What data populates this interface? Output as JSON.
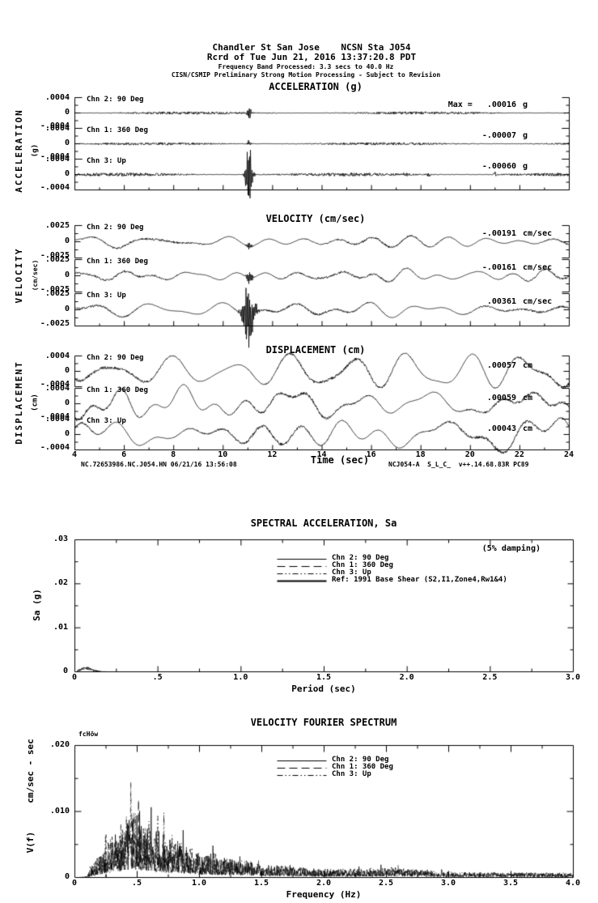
{
  "header": {
    "line1": "Chandler St San Jose    NCSN Sta J054",
    "line2": "Rcrd of Tue Jun 21, 2016 13:37:20.8 PDT",
    "line3": "Frequency Band Processed: 3.3 secs to 40.0 Hz",
    "line4": "CISN/CSMIP Preliminary Strong Motion Processing - Subject to Revision"
  },
  "panels": {
    "acceleration": {
      "title": "ACCELERATION (g)",
      "side_label": "ACCELERATION",
      "side_unit": "(g)",
      "yticks": [
        ".0004",
        "0",
        "-.0004"
      ],
      "channels": [
        {
          "label": "Chn 2: 90 Deg",
          "max_label": "Max =   .00016",
          "unit": "g"
        },
        {
          "label": "Chn 1: 360 Deg",
          "max_label": "-.00007",
          "unit": "g"
        },
        {
          "label": "Chn 3: Up",
          "max_label": "-.00060",
          "unit": "g"
        }
      ]
    },
    "velocity": {
      "title": "VELOCITY (cm/sec)",
      "side_label": "VELOCITY",
      "side_unit": "(cm/sec)",
      "yticks": [
        ".0025",
        "0",
        "-.0025"
      ],
      "channels": [
        {
          "label": "Chn 2: 90 Deg",
          "max_label": "-.00191",
          "unit": "cm/sec"
        },
        {
          "label": "Chn 1: 360 Deg",
          "max_label": "-.00161",
          "unit": "cm/sec"
        },
        {
          "label": "Chn 3: Up",
          "max_label": ".00361",
          "unit": "cm/sec"
        }
      ]
    },
    "displacement": {
      "title": "DISPLACEMENT (cm)",
      "side_label": "DISPLACEMENT",
      "side_unit": "(cm)",
      "yticks": [
        ".0004",
        "0",
        "-.0004"
      ],
      "channels": [
        {
          "label": "Chn 2: 90 Deg",
          "max_label": ".00057",
          "unit": "cm"
        },
        {
          "label": "Chn 1: 360 Deg",
          "max_label": ".00059",
          "unit": "cm"
        },
        {
          "label": "Chn 3: Up",
          "max_label": ".00043",
          "unit": "cm"
        }
      ],
      "xticks": [
        "4",
        "6",
        "8",
        "10",
        "12",
        "14",
        "16",
        "18",
        "20",
        "22",
        "24"
      ],
      "xlabel": "Time (sec)",
      "footer_left": "NC.72653986.NC.J054.HN 06/21/16 13:56:08",
      "footer_right": "NCJ054-A  S_L_C_  v++.14.68.83R PC89"
    }
  },
  "sa": {
    "title": "SPECTRAL ACCELERATION, Sa",
    "damping_note": "(5% damping)",
    "ylabel": "Sa (g)",
    "xlabel": "Period (sec)",
    "yticks": [
      ".03",
      ".02",
      ".01",
      "0"
    ],
    "xticks": [
      "0",
      ".5",
      "1.0",
      "1.5",
      "2.0",
      "2.5",
      "3.0"
    ],
    "legend": [
      {
        "label": "Chn 2: 90 Deg",
        "style": "solid"
      },
      {
        "label": "Chn 1: 360 Deg",
        "style": "long-dash"
      },
      {
        "label": "Chn 3: Up",
        "style": "dash-dot-dot"
      },
      {
        "label": "Ref: 1991 Base Shear (S2,I1,Zone4,Rw1&4)",
        "style": "solid-thick"
      }
    ]
  },
  "fourier": {
    "title": "VELOCITY FOURIER SPECTRUM",
    "fc_label": "fcHöw",
    "ylabel_unit": "cm/sec - sec",
    "ylabel_name": "V(f)",
    "xlabel": "Frequency (Hz)",
    "yticks": [
      ".020",
      ".010",
      "0"
    ],
    "xticks": [
      "0",
      ".5",
      "1.0",
      "1.5",
      "2.0",
      "2.5",
      "3.0",
      "3.5",
      "4.0"
    ],
    "legend": [
      {
        "label": "Chn 2: 90 Deg",
        "style": "solid"
      },
      {
        "label": "Chn 1: 360 Deg",
        "style": "long-dash"
      },
      {
        "label": "Chn 3: Up",
        "style": "dash-dot-dot"
      }
    ]
  },
  "chart_data": [
    {
      "id": "acceleration_time_series",
      "type": "line",
      "title": "ACCELERATION (g)",
      "xlabel": "Time (sec)",
      "xlim": [
        4,
        24
      ],
      "ylim": [
        -0.0004,
        0.0004
      ],
      "units": "g",
      "event_time_sec": 11.05,
      "series": [
        {
          "name": "Chn 2: 90 Deg",
          "peak_value": 0.00016,
          "noise_amp": 2e-05,
          "spike": {
            "t": 11.05,
            "amp": 0.00016,
            "width_sec": 0.08
          }
        },
        {
          "name": "Chn 1: 360 Deg",
          "peak_value": -7e-05,
          "noise_amp": 2e-05,
          "spike": {
            "t": 11.05,
            "amp": 8e-05,
            "width_sec": 0.07
          }
        },
        {
          "name": "Chn 3: Up",
          "peak_value": -0.0006,
          "noise_amp": 2.5e-05,
          "spike": {
            "t": 11.05,
            "amp": 0.0006,
            "width_sec": 0.14
          },
          "minor_bursts": [
            6.3,
            17.4,
            18.3,
            21.0
          ]
        }
      ]
    },
    {
      "id": "velocity_time_series",
      "type": "line",
      "title": "VELOCITY (cm/sec)",
      "xlabel": "Time (sec)",
      "xlim": [
        4,
        24
      ],
      "ylim": [
        -0.0025,
        0.0025
      ],
      "units": "cm/sec",
      "wander_amp": 0.0007,
      "wander_period_range_sec": [
        0.6,
        3.5
      ],
      "series": [
        {
          "name": "Chn 2: 90 Deg",
          "peak_value": -0.00191,
          "spike": {
            "t": 11.05,
            "amp": 0.0006,
            "width_sec": 0.1
          }
        },
        {
          "name": "Chn 1: 360 Deg",
          "peak_value": -0.00161,
          "spike": {
            "t": 11.05,
            "amp": 0.001,
            "width_sec": 0.12
          }
        },
        {
          "name": "Chn 3: Up",
          "peak_value": 0.00361,
          "spike": {
            "t": 11.05,
            "amp": 0.0035,
            "width_sec": 0.25
          }
        }
      ]
    },
    {
      "id": "displacement_time_series",
      "type": "line",
      "title": "DISPLACEMENT (cm)",
      "xlabel": "Time (sec)",
      "xlim": [
        4,
        24
      ],
      "ylim": [
        -0.0004,
        0.0004
      ],
      "units": "cm",
      "wander_amp": 0.00025,
      "wander_period_range_sec": [
        1.2,
        5.0
      ],
      "series": [
        {
          "name": "Chn 2: 90 Deg",
          "peak_value": 0.00057
        },
        {
          "name": "Chn 1: 360 Deg",
          "peak_value": 0.00059
        },
        {
          "name": "Chn 3: Up",
          "peak_value": 0.00043
        }
      ]
    },
    {
      "id": "spectral_acceleration",
      "type": "line",
      "title": "SPECTRAL ACCELERATION, Sa",
      "xlabel": "Period (sec)",
      "ylabel": "Sa (g)",
      "xlim": [
        0,
        3
      ],
      "ylim": [
        0,
        0.03
      ],
      "damping_percent": 5,
      "curve": {
        "peak_value": 0.0009,
        "peak_period_sec": 0.07,
        "extent_sec": [
          0.015,
          0.3
        ]
      },
      "series": [
        "Chn 2: 90 Deg",
        "Chn 1: 360 Deg",
        "Chn 3: Up",
        "Ref: 1991 Base Shear (S2,I1,Zone4,Rw1&4)"
      ]
    },
    {
      "id": "velocity_fourier_spectrum",
      "type": "line",
      "title": "VELOCITY FOURIER SPECTRUM",
      "xlabel": "Frequency (Hz)",
      "ylabel": "V(f) cm/sec - sec",
      "xlim": [
        0,
        4
      ],
      "ylim": [
        0,
        0.02
      ],
      "envelope_points_hz_value": [
        [
          0.1,
          0.0005
        ],
        [
          0.2,
          0.004
        ],
        [
          0.3,
          0.006
        ],
        [
          0.45,
          0.0105
        ],
        [
          0.6,
          0.008
        ],
        [
          0.8,
          0.006
        ],
        [
          1.0,
          0.004
        ],
        [
          1.5,
          0.002
        ],
        [
          2.0,
          0.0012
        ],
        [
          2.6,
          0.0015
        ],
        [
          3.0,
          0.0008
        ],
        [
          4.0,
          0.0007
        ]
      ],
      "fc_marker": {
        "hz": 0.25,
        "height": 0.0065
      },
      "series": [
        "Chn 2: 90 Deg",
        "Chn 1: 360 Deg",
        "Chn 3: Up"
      ]
    }
  ]
}
